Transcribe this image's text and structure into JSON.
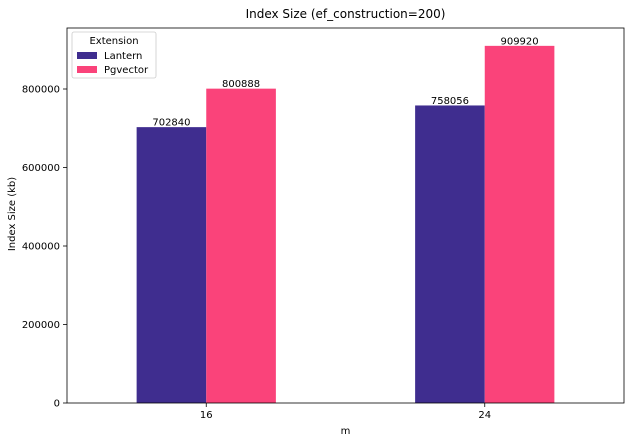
{
  "chart_data": {
    "type": "bar",
    "title": "Index Size (ef_construction=200)",
    "xlabel": "m",
    "ylabel": "Index Size (kb)",
    "categories": [
      "16",
      "24"
    ],
    "series": [
      {
        "name": "Lantern",
        "values": [
          702840,
          758056
        ],
        "color": "#3f2d8f"
      },
      {
        "name": "Pgvector",
        "values": [
          800888,
          909920
        ],
        "color": "#fa437a"
      }
    ],
    "ylim": [
      0,
      955416
    ],
    "yticks": [
      0,
      200000,
      400000,
      600000,
      800000
    ],
    "legend": {
      "title": "Extension",
      "placement": "top-left"
    },
    "grid": false
  }
}
